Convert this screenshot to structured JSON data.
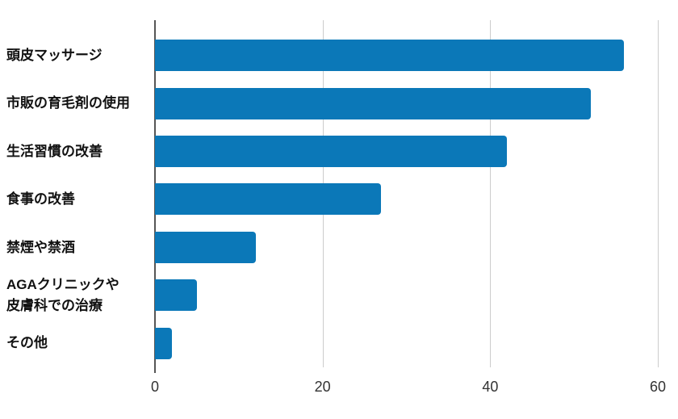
{
  "chart_data": {
    "type": "bar",
    "orientation": "horizontal",
    "title": "",
    "categories": [
      "頭皮マッサージ",
      "市販の育毛剤の使用",
      "生活習慣の改善",
      "食事の改善",
      "禁煙や禁酒",
      "AGAクリニックや\n皮膚科での治療",
      "その他"
    ],
    "values": [
      56,
      52,
      42,
      27,
      12,
      5,
      2
    ],
    "xlim": [
      0,
      60
    ],
    "x_ticks": [
      "0",
      "20",
      "40",
      "60"
    ],
    "grid": true,
    "legend": "none",
    "bar_color": "#0b78b8",
    "axis_line_color": "#565656",
    "gridline_color": "#cccccc",
    "tick_label_color": "#333333",
    "category_label_color": "#111111",
    "background_color": "#ffffff"
  }
}
